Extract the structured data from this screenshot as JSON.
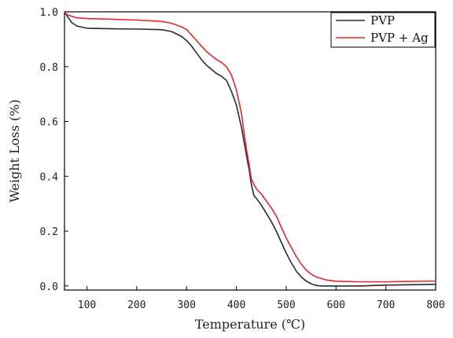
{
  "chart_data": {
    "type": "line",
    "xlabel": "Temperature (℃)",
    "ylabel": "Weight Loss (%)",
    "xlim": [
      55,
      800
    ],
    "ylim": [
      -0.015,
      1.0
    ],
    "xticks": [
      100,
      200,
      300,
      400,
      500,
      600,
      700,
      800
    ],
    "xtick_labels": [
      "100",
      "200",
      "300",
      "400",
      "500",
      "600",
      "700",
      "800"
    ],
    "yticks": [
      0.0,
      0.2,
      0.4,
      0.6,
      0.8,
      1.0
    ],
    "ytick_labels": [
      "0.0",
      "0.2",
      "0.4",
      "0.6",
      "0.8",
      "1.0"
    ],
    "grid": false,
    "legend_position": "top-right",
    "series": [
      {
        "name": "PVP",
        "color": "#2b2b2b",
        "x": [
          55,
          60,
          70,
          80,
          100,
          150,
          200,
          250,
          270,
          290,
          300,
          310,
          320,
          330,
          340,
          350,
          360,
          370,
          380,
          390,
          400,
          410,
          420,
          425,
          430,
          435,
          440,
          450,
          460,
          470,
          480,
          490,
          500,
          510,
          520,
          530,
          540,
          550,
          560,
          570,
          580,
          600,
          650,
          700,
          800
        ],
        "y": [
          1.0,
          0.985,
          0.96,
          0.948,
          0.94,
          0.938,
          0.937,
          0.935,
          0.928,
          0.91,
          0.895,
          0.875,
          0.85,
          0.825,
          0.805,
          0.79,
          0.775,
          0.765,
          0.75,
          0.71,
          0.66,
          0.58,
          0.48,
          0.43,
          0.37,
          0.33,
          0.32,
          0.295,
          0.265,
          0.235,
          0.2,
          0.16,
          0.12,
          0.085,
          0.055,
          0.033,
          0.018,
          0.008,
          0.002,
          0.0,
          0.0,
          0.0,
          0.0,
          0.003,
          0.006
        ]
      },
      {
        "name": "PVP + Ag",
        "color": "#e8262a",
        "x": [
          55,
          60,
          70,
          80,
          100,
          150,
          200,
          250,
          270,
          290,
          300,
          310,
          320,
          330,
          340,
          350,
          360,
          370,
          380,
          390,
          400,
          410,
          420,
          425,
          430,
          435,
          440,
          450,
          460,
          470,
          480,
          490,
          500,
          510,
          520,
          530,
          540,
          550,
          560,
          580,
          600,
          650,
          700,
          800
        ],
        "y": [
          1.0,
          0.99,
          0.983,
          0.978,
          0.975,
          0.973,
          0.97,
          0.965,
          0.958,
          0.945,
          0.935,
          0.915,
          0.895,
          0.875,
          0.855,
          0.84,
          0.826,
          0.815,
          0.8,
          0.77,
          0.715,
          0.63,
          0.5,
          0.45,
          0.39,
          0.37,
          0.355,
          0.335,
          0.31,
          0.285,
          0.255,
          0.215,
          0.175,
          0.14,
          0.108,
          0.08,
          0.058,
          0.043,
          0.033,
          0.022,
          0.017,
          0.015,
          0.015,
          0.018
        ]
      }
    ]
  }
}
